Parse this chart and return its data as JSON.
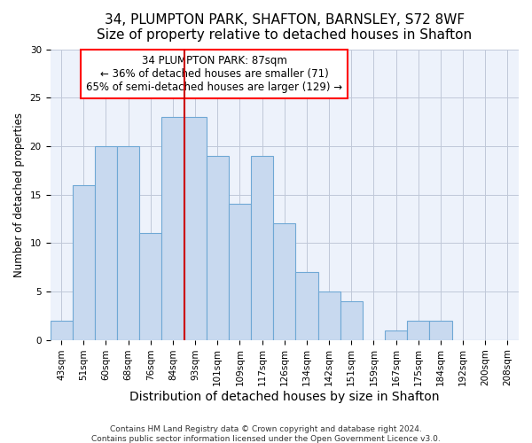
{
  "title_line1": "34, PLUMPTON PARK, SHAFTON, BARNSLEY, S72 8WF",
  "title_line2": "Size of property relative to detached houses in Shafton",
  "xlabel": "Distribution of detached houses by size in Shafton",
  "ylabel": "Number of detached properties",
  "categories": [
    "43sqm",
    "51sqm",
    "60sqm",
    "68sqm",
    "76sqm",
    "84sqm",
    "93sqm",
    "101sqm",
    "109sqm",
    "117sqm",
    "126sqm",
    "134sqm",
    "142sqm",
    "151sqm",
    "159sqm",
    "167sqm",
    "175sqm",
    "184sqm",
    "192sqm",
    "200sqm",
    "208sqm"
  ],
  "values": [
    2,
    16,
    20,
    20,
    11,
    23,
    23,
    19,
    14,
    19,
    12,
    7,
    5,
    4,
    0,
    1,
    2,
    2,
    0,
    0,
    0
  ],
  "bar_color": "#c8d9ef",
  "bar_edgecolor": "#6fa8d5",
  "property_line_x": 5.5,
  "annotation_text_line1": "34 PLUMPTON PARK: 87sqm",
  "annotation_text_line2": "← 36% of detached houses are smaller (71)",
  "annotation_text_line3": "65% of semi-detached houses are larger (129) →",
  "vline_color": "#cc0000",
  "ylim": [
    0,
    30
  ],
  "yticks": [
    0,
    5,
    10,
    15,
    20,
    25,
    30
  ],
  "footer_line1": "Contains HM Land Registry data © Crown copyright and database right 2024.",
  "footer_line2": "Contains public sector information licensed under the Open Government Licence v3.0.",
  "background_color": "#edf2fb",
  "grid_color": "#c0c8d8",
  "annotation_fontsize": 8.5,
  "title_fontsize1": 11,
  "title_fontsize2": 10,
  "ylabel_fontsize": 8.5,
  "xlabel_fontsize": 10,
  "tick_fontsize": 7.5,
  "footer_fontsize": 6.5
}
